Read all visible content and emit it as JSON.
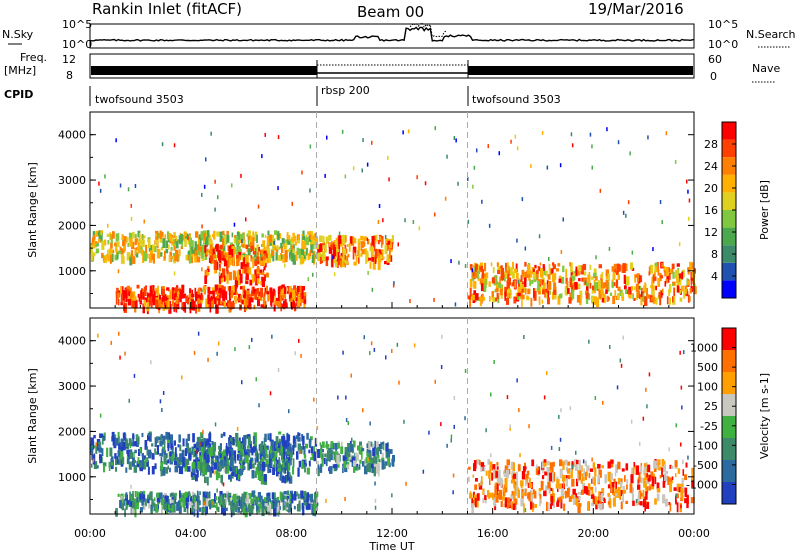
{
  "header": {
    "site": "Rankin Inlet (fitACF)",
    "beam": "Beam 00",
    "date": "19/Mar/2016"
  },
  "status_panels": {
    "nsky_label": "N.Sky",
    "nsearch_label": "N.Search",
    "nsky_ticks": [
      "10^5",
      "10^0"
    ],
    "nsky_right_ticks": [
      "10^5",
      "10^0"
    ],
    "freq_label": "Freq.",
    "freq_unit": "[MHz]",
    "freq_ticks": [
      "12",
      "8"
    ],
    "nave_label": "Nave",
    "nave_ticks": [
      "60",
      "0"
    ],
    "cpid_label": "CPID",
    "programs": [
      {
        "name": "twofsound 3503",
        "start_h": 0,
        "end_h": 9
      },
      {
        "name": "rbsp 200",
        "start_h": 9,
        "end_h": 15
      },
      {
        "name": "twofsound 3503",
        "start_h": 15,
        "end_h": 24
      }
    ]
  },
  "chart_data": [
    {
      "type": "heatmap",
      "name": "power",
      "ylabel": "Slant Range [km]",
      "ylim": [
        180,
        4500
      ],
      "y_ticks": [
        1000,
        2000,
        3000,
        4000
      ],
      "colorbar_label": "Power [dB]",
      "colorbar_ticks": [
        "28",
        "24",
        "20",
        "16",
        "12",
        "8",
        "4"
      ],
      "colors": [
        "#0000ff",
        "#2050b0",
        "#3c8a6a",
        "#4ca84c",
        "#80c840",
        "#e0d020",
        "#ffb000",
        "#ff8000",
        "#ff4000",
        "#ff0000"
      ],
      "features": [
        {
          "t": [
            0,
            9
          ],
          "r": [
            1300,
            1900
          ],
          "level": 0.55
        },
        {
          "t": [
            4.5,
            7
          ],
          "r": [
            800,
            1600
          ],
          "level": 0.85
        },
        {
          "t": [
            1,
            8.5
          ],
          "r": [
            250,
            700
          ],
          "level": 0.9
        },
        {
          "t": [
            9,
            12
          ],
          "r": [
            1200,
            1800
          ],
          "level": 0.75
        },
        {
          "t": [
            15,
            24
          ],
          "r": [
            400,
            1200
          ],
          "level": 0.7
        }
      ]
    },
    {
      "type": "heatmap",
      "name": "velocity",
      "ylabel": "Slant Range [km]",
      "ylim": [
        180,
        4500
      ],
      "y_ticks": [
        1000,
        2000,
        3000,
        4000
      ],
      "colorbar_label": "Velocity [m s-1]",
      "colorbar_ticks": [
        "1000",
        "500",
        "100",
        "25",
        "-25",
        "-100",
        "-500",
        "-1000"
      ],
      "colors": [
        "#2040c0",
        "#2c6aa0",
        "#3c8a6a",
        "#40b040",
        "#c8c8c0",
        "#ffa000",
        "#ff7000",
        "#ff0000"
      ],
      "features": [
        {
          "t": [
            0,
            9
          ],
          "r": [
            1200,
            2000
          ],
          "level": 0.2
        },
        {
          "t": [
            4,
            8
          ],
          "r": [
            1000,
            1800
          ],
          "level": 0.25
        },
        {
          "t": [
            1,
            9
          ],
          "r": [
            300,
            700
          ],
          "level": 0.3
        },
        {
          "t": [
            9,
            12
          ],
          "r": [
            1200,
            1800
          ],
          "level": 0.3
        },
        {
          "t": [
            15,
            24
          ],
          "r": [
            400,
            1400
          ],
          "level": 0.75
        }
      ]
    }
  ],
  "x_axis": {
    "label": "Time UT",
    "ticks": [
      "00:00",
      "04:00",
      "08:00",
      "12:00",
      "16:00",
      "20:00",
      "00:00"
    ]
  },
  "program_change_hours": [
    9,
    15
  ]
}
